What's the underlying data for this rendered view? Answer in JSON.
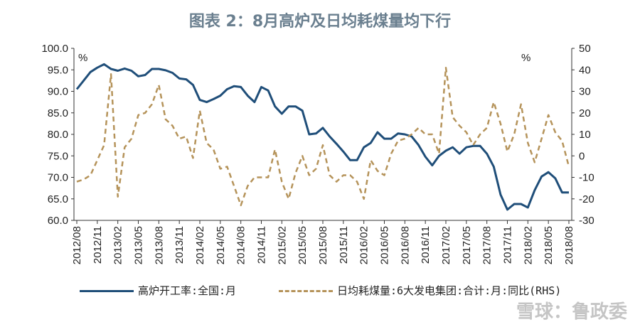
{
  "title": "图表 2：8月高炉及日均耗煤量均下行",
  "left_unit": "%",
  "right_unit": "%",
  "watermark": "雪球：鲁政委",
  "colors": {
    "series1": "#1f4e79",
    "series2": "#b5935a"
  },
  "chart_data": {
    "type": "line",
    "title": "图表 2：8月高炉及日均耗煤量均下行",
    "x": [
      "2012/08",
      "2012/09",
      "2012/10",
      "2012/11",
      "2012/12",
      "2013/01",
      "2013/02",
      "2013/03",
      "2013/04",
      "2013/05",
      "2013/06",
      "2013/07",
      "2013/08",
      "2013/09",
      "2013/10",
      "2013/11",
      "2013/12",
      "2014/01",
      "2014/02",
      "2014/03",
      "2014/04",
      "2014/05",
      "2014/06",
      "2014/07",
      "2014/08",
      "2014/09",
      "2014/10",
      "2014/11",
      "2014/12",
      "2015/01",
      "2015/02",
      "2015/03",
      "2015/04",
      "2015/05",
      "2015/06",
      "2015/07",
      "2015/08",
      "2015/09",
      "2015/10",
      "2015/11",
      "2015/12",
      "2016/01",
      "2016/02",
      "2016/03",
      "2016/04",
      "2016/05",
      "2016/06",
      "2016/07",
      "2016/08",
      "2016/09",
      "2016/10",
      "2016/11",
      "2016/12",
      "2017/01",
      "2017/02",
      "2017/03",
      "2017/04",
      "2017/05",
      "2017/06",
      "2017/07",
      "2017/08",
      "2017/09",
      "2017/10",
      "2017/11",
      "2017/12",
      "2018/01",
      "2018/02",
      "2018/03",
      "2018/04",
      "2018/05",
      "2018/06",
      "2018/07",
      "2018/08"
    ],
    "x_tick_labels": [
      "2012/08",
      "2012/11",
      "2013/02",
      "2013/05",
      "2013/08",
      "2013/11",
      "2014/02",
      "2014/05",
      "2014/08",
      "2014/11",
      "2015/02",
      "2015/05",
      "2015/08",
      "2015/11",
      "2016/02",
      "2016/05",
      "2016/08",
      "2016/11",
      "2017/02",
      "2017/05",
      "2017/08",
      "2017/11",
      "2018/02",
      "2018/05",
      "2018/08"
    ],
    "y_left": {
      "min": 60,
      "max": 100,
      "ticks": [
        "100.0",
        "95.0",
        "90.0",
        "85.0",
        "80.0",
        "75.0",
        "70.0",
        "65.0",
        "60.0"
      ]
    },
    "y_right": {
      "min": -30,
      "max": 50,
      "ticks": [
        "50",
        "40",
        "30",
        "20",
        "10",
        "0",
        "-10",
        "-20",
        "-30"
      ]
    },
    "series": [
      {
        "name": "高炉开工率:全国:月",
        "axis": "left",
        "style": "solid",
        "values": [
          90.5,
          92.5,
          94.5,
          95.5,
          96.3,
          95.2,
          94.8,
          95.3,
          94.8,
          93.5,
          93.8,
          95.2,
          95.2,
          94.9,
          94.3,
          93.0,
          92.8,
          91.5,
          88.0,
          87.5,
          88.2,
          89.0,
          90.5,
          91.2,
          91.0,
          89.0,
          87.5,
          91.0,
          90.2,
          86.5,
          84.8,
          86.5,
          86.5,
          85.5,
          80.0,
          80.2,
          81.5,
          79.5,
          77.8,
          76.0,
          74.0,
          74.0,
          77.0,
          78.0,
          80.5,
          79.0,
          79.0,
          80.2,
          80.0,
          79.5,
          77.5,
          74.8,
          72.8,
          75.0,
          76.2,
          77.0,
          75.5,
          77.0,
          77.3,
          77.3,
          75.5,
          72.5,
          66.0,
          62.5,
          63.8,
          63.8,
          63.0,
          67.0,
          70.2,
          71.2,
          69.8,
          66.5,
          66.5
        ]
      },
      {
        "name": "日均耗煤量:6大发电集团:合计:月:同比(RHS)",
        "axis": "right",
        "style": "dashed",
        "values": [
          -12,
          -11,
          -9,
          -2,
          5,
          38,
          -19,
          4,
          8,
          19,
          20,
          24,
          33,
          17,
          14,
          8,
          9,
          -1,
          21,
          6,
          3,
          -6,
          -5,
          -14,
          -23,
          -14,
          -10,
          -10,
          -10,
          3,
          -12,
          -20,
          -8,
          0,
          -9,
          -6,
          5,
          -9,
          -12,
          -9,
          -9,
          -12,
          -20,
          -2,
          -7,
          -9,
          1,
          7,
          8,
          10,
          13,
          10,
          10,
          1,
          41,
          18,
          14,
          11,
          5,
          10,
          13,
          25,
          15,
          2,
          10,
          24,
          6,
          -3,
          8,
          19,
          11,
          7,
          -5
        ]
      }
    ],
    "grid": false,
    "legend": "bottom"
  }
}
